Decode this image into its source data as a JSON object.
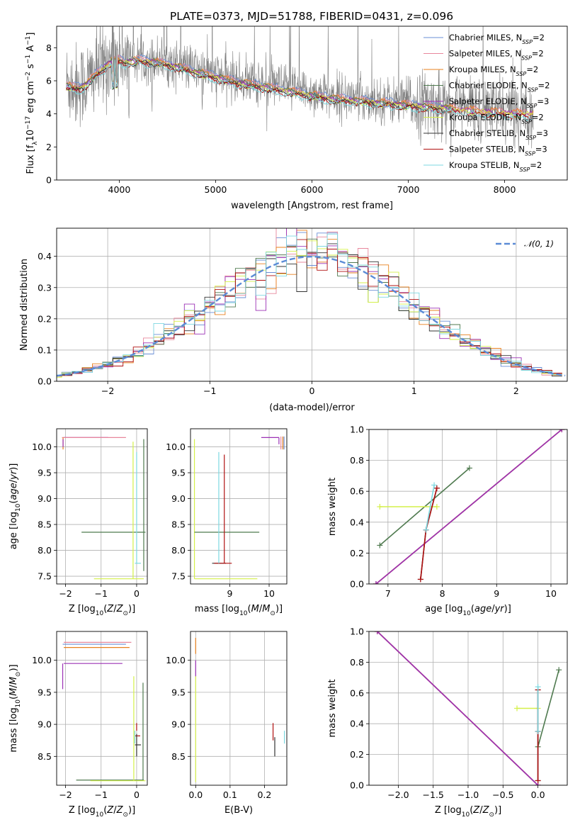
{
  "figure_title": "PLATE=0373, MJD=51788, FIBERID=0431, z=0.096",
  "colors": {
    "Chabrier MILES": "#6a8fd6",
    "Salpeter MILES": "#e8879c",
    "Kroupa MILES": "#e8801e",
    "Chabrier ELODIE": "#4f7a4f",
    "Salpeter ELODIE": "#9b30b5",
    "Kroupa ELODIE": "#d4f048",
    "Chabrier STELIB": "#333333",
    "Salpeter STELIB": "#b01010",
    "Kroupa STELIB": "#7dd8e0",
    "data": "#808080"
  },
  "chart_data": [
    {
      "id": "spectrum",
      "type": "line",
      "xlabel": "wavelength [Angstrom, rest frame]",
      "ylabel": "Flux [f",
      "ylabel_sub": "λ",
      "ylabel_mid": "10",
      "ylabel_sup1": "−17",
      "ylabel_mid2": " erg cm",
      "ylabel_sup2": "−2",
      "ylabel_mid3": " s",
      "ylabel_sup3": "−1",
      "ylabel_mid4": " A",
      "ylabel_sup4": "−1",
      "ylabel_end": "]",
      "xlim": [
        3350,
        8650
      ],
      "ylim": [
        0,
        9.3
      ],
      "xticks": [
        4000,
        5000,
        6000,
        7000,
        8000
      ],
      "yticks": [
        0,
        2,
        4,
        6,
        8
      ],
      "grid": false,
      "legend_position": "upper-right",
      "legend": [
        {
          "name": "Chabrier MILES",
          "nssp": "2"
        },
        {
          "name": "Salpeter MILES",
          "nssp": "2"
        },
        {
          "name": "Kroupa MILES",
          "nssp": "2"
        },
        {
          "name": "Chabrier ELODIE",
          "nssp": "2"
        },
        {
          "name": "Salpeter ELODIE",
          "nssp": "3"
        },
        {
          "name": "Kroupa ELODIE",
          "nssp": "2"
        },
        {
          "name": "Chabrier STELIB",
          "nssp": "3"
        },
        {
          "name": "Salpeter STELIB",
          "nssp": "3"
        },
        {
          "name": "Kroupa STELIB",
          "nssp": "2"
        }
      ],
      "nssp_prefix": "N",
      "nssp_sub": "SSP",
      "continuum": [
        [
          3450,
          5.9
        ],
        [
          3550,
          5.7
        ],
        [
          3650,
          5.9
        ],
        [
          3750,
          6.5
        ],
        [
          3850,
          7.0
        ],
        [
          3950,
          7.5
        ],
        [
          4050,
          7.3
        ],
        [
          4200,
          7.4
        ],
        [
          4400,
          7.3
        ],
        [
          4600,
          7.0
        ],
        [
          4800,
          6.7
        ],
        [
          5000,
          6.4
        ],
        [
          5200,
          6.1
        ],
        [
          5400,
          5.9
        ],
        [
          5600,
          5.7
        ],
        [
          5800,
          5.5
        ],
        [
          6000,
          5.3
        ],
        [
          6200,
          5.1
        ],
        [
          6400,
          5.0
        ],
        [
          6600,
          4.9
        ],
        [
          6800,
          4.8
        ],
        [
          7000,
          4.7
        ],
        [
          7200,
          4.6
        ],
        [
          7400,
          4.5
        ],
        [
          7600,
          4.4
        ],
        [
          7800,
          4.3
        ],
        [
          8000,
          4.25
        ],
        [
          8200,
          4.2
        ],
        [
          8300,
          4.2
        ]
      ]
    },
    {
      "id": "residuals",
      "type": "histogram",
      "xlabel": "(data-model)/error",
      "ylabel": "Normed distribution",
      "xlim": [
        -2.5,
        2.5
      ],
      "ylim": [
        0,
        0.49
      ],
      "xticks": [
        -2,
        -1,
        0,
        1,
        2
      ],
      "yticks": [
        0.0,
        0.1,
        0.2,
        0.3,
        0.4
      ],
      "grid": true,
      "legend_position": "upper-right",
      "reference_curve": {
        "name": "𝒩(0, 1)",
        "mean": 0,
        "sigma": 1
      }
    },
    {
      "id": "age_vs_z",
      "type": "errorbar",
      "xlabel": "Z [log",
      "xlabel_sub": "10",
      "xlabel_mid": "(Z/Z",
      "xlabel_sub2": "⊙",
      "xlabel_end": ")]",
      "ylabel": "age  [log",
      "ylabel_sub": "10",
      "ylabel_end": "(age/yr)]",
      "xlim": [
        -2.25,
        0.3
      ],
      "ylim": [
        7.35,
        10.35
      ],
      "xticks": [
        -2,
        -1,
        0
      ],
      "yticks": [
        7.5,
        8.0,
        8.5,
        9.0,
        9.5,
        10.0
      ],
      "grid": true
    },
    {
      "id": "age_vs_mass",
      "type": "errorbar",
      "xlabel": "mass [log",
      "xlabel_sub": "10",
      "xlabel_mid": "(M/M",
      "xlabel_sub2": "⊙",
      "xlabel_end": ")]",
      "xlim": [
        8.0,
        10.45
      ],
      "ylim": [
        7.35,
        10.35
      ],
      "xticks": [
        9,
        10
      ],
      "yticks": [
        7.5,
        8.0,
        8.5,
        9.0,
        9.5,
        10.0
      ],
      "grid": true
    },
    {
      "id": "weight_vs_age",
      "type": "line",
      "xlabel": "age  [log",
      "xlabel_sub": "10",
      "xlabel_end": "(age/yr)]",
      "ylabel": "mass weight",
      "xlim": [
        6.65,
        10.3
      ],
      "ylim": [
        0,
        1
      ],
      "xticks": [
        7,
        8,
        9,
        10
      ],
      "yticks": [
        0.0,
        0.2,
        0.4,
        0.6,
        0.8,
        1.0
      ],
      "grid": true,
      "series": [
        {
          "model": "Chabrier MILES",
          "x": [
            6.78,
            10.2
          ],
          "y": [
            0.0,
            1.0
          ]
        },
        {
          "model": "Salpeter MILES",
          "x": [
            6.78,
            10.2
          ],
          "y": [
            0.0,
            1.0
          ]
        },
        {
          "model": "Kroupa MILES",
          "x": [
            6.78,
            10.2
          ],
          "y": [
            0.0,
            1.0
          ]
        },
        {
          "model": "Chabrier ELODIE",
          "x": [
            6.85,
            8.5
          ],
          "y": [
            0.25,
            0.75
          ]
        },
        {
          "model": "Salpeter ELODIE",
          "x": [
            6.78,
            10.2
          ],
          "y": [
            0.0,
            1.0
          ]
        },
        {
          "model": "Kroupa ELODIE",
          "x": [
            6.85,
            7.9
          ],
          "y": [
            0.5,
            0.5
          ]
        },
        {
          "model": "Chabrier STELIB",
          "x": [
            7.6,
            7.7,
            7.9
          ],
          "y": [
            0.03,
            0.35,
            0.62
          ]
        },
        {
          "model": "Salpeter STELIB",
          "x": [
            7.6,
            7.7,
            7.9
          ],
          "y": [
            0.03,
            0.35,
            0.62
          ]
        },
        {
          "model": "Kroupa STELIB",
          "x": [
            7.7,
            7.85
          ],
          "y": [
            0.35,
            0.64
          ]
        }
      ]
    },
    {
      "id": "mass_vs_z",
      "type": "errorbar",
      "xlabel": "Z [log",
      "xlabel_sub": "10",
      "xlabel_mid": "(Z/Z",
      "xlabel_sub2": "⊙",
      "xlabel_end": ")]",
      "ylabel": "mass [log",
      "ylabel_sub": "10",
      "ylabel_mid": "(M/M",
      "ylabel_sub2": "⊙",
      "ylabel_end": ")]",
      "xlim": [
        -2.25,
        0.3
      ],
      "ylim": [
        8.05,
        10.45
      ],
      "xticks": [
        -2,
        -1,
        0
      ],
      "yticks": [
        8.5,
        9.0,
        9.5,
        10.0
      ],
      "grid": true
    },
    {
      "id": "mass_vs_ebv",
      "type": "errorbar",
      "xlabel": "E(B-V)",
      "xlim": [
        -0.015,
        0.265
      ],
      "ylim": [
        8.05,
        10.45
      ],
      "xticks": [
        0.0,
        0.1,
        0.2
      ],
      "yticks": [
        8.5,
        9.0,
        9.5,
        10.0
      ],
      "grid": true
    },
    {
      "id": "weight_vs_z",
      "type": "line",
      "xlabel": "Z [log",
      "xlabel_sub": "10",
      "xlabel_mid": "(Z/Z",
      "xlabel_sub2": "⊙",
      "xlabel_end": ")]",
      "ylabel": "mass weight",
      "xlim": [
        -2.42,
        0.42
      ],
      "ylim": [
        0,
        1
      ],
      "xticks": [
        -2.0,
        -1.5,
        -1.0,
        -0.5,
        0.0
      ],
      "yticks": [
        0.0,
        0.2,
        0.4,
        0.6,
        0.8,
        1.0
      ],
      "grid": true,
      "series": [
        {
          "model": "Chabrier MILES",
          "x": [
            -2.3,
            0.0
          ],
          "y": [
            1.0,
            0.0
          ]
        },
        {
          "model": "Salpeter MILES",
          "x": [
            -2.3,
            0.0
          ],
          "y": [
            1.0,
            0.0
          ]
        },
        {
          "model": "Kroupa MILES",
          "x": [
            -2.3,
            0.0
          ],
          "y": [
            1.0,
            0.0
          ]
        },
        {
          "model": "Chabrier ELODIE",
          "x": [
            0.0,
            0.3
          ],
          "y": [
            0.25,
            0.75
          ]
        },
        {
          "model": "Salpeter ELODIE",
          "x": [
            -2.3,
            0.0
          ],
          "y": [
            1.0,
            0.0
          ]
        },
        {
          "model": "Kroupa ELODIE",
          "x": [
            -0.3,
            0.0
          ],
          "y": [
            0.5,
            0.5
          ]
        },
        {
          "model": "Chabrier STELIB",
          "x": [
            0.0,
            0.0,
            0.0
          ],
          "y": [
            0.03,
            0.35,
            0.62
          ]
        },
        {
          "model": "Salpeter STELIB",
          "x": [
            0.0,
            0.0,
            0.0
          ],
          "y": [
            0.03,
            0.35,
            0.62
          ]
        },
        {
          "model": "Kroupa STELIB",
          "x": [
            0.0,
            0.0
          ],
          "y": [
            0.35,
            0.64
          ]
        }
      ]
    }
  ]
}
